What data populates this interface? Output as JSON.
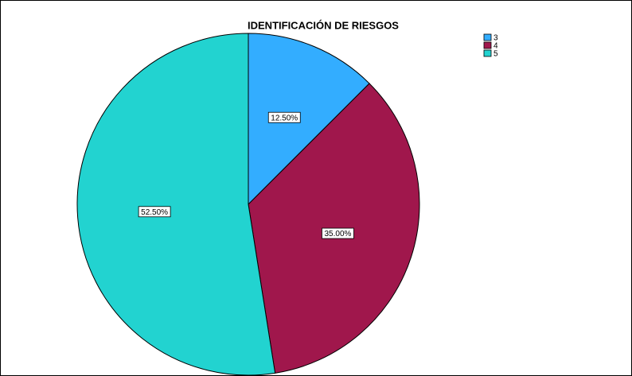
{
  "chart_data": {
    "type": "pie",
    "title": "IDENTIFICACIÓN DE RIESGOS",
    "categories": [
      "3",
      "4",
      "5"
    ],
    "values": [
      12.5,
      35,
      52.5
    ],
    "value_labels": [
      "12.50%",
      "35.00%",
      "52.50%"
    ],
    "colors": [
      "#33adff",
      "#a0174c",
      "#22d3d0"
    ],
    "legend": "top-right"
  }
}
